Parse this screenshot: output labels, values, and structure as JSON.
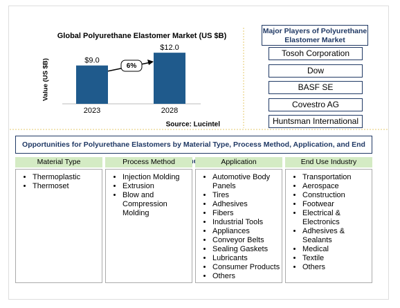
{
  "chart_data": {
    "type": "bar",
    "title": "Global Polyurethane Elastomer Market (US $B)",
    "y_label": "Value (US $B)",
    "categories": [
      "2023",
      "2028"
    ],
    "values": [
      9.0,
      12.0
    ],
    "value_labels": [
      "$9.0",
      "$12.0"
    ],
    "color": "#1f5a8c",
    "ylim": [
      0,
      13
    ],
    "annotation": "6%",
    "source": "Source: Lucintel"
  },
  "major_players": {
    "title": "Major Players of Polyurethane Elastomer Market",
    "companies": [
      "Tosoh Corporation",
      "Dow",
      "BASF SE",
      "Covestro AG",
      "Huntsman International"
    ]
  },
  "opportunities": {
    "title": "Opportunities for Polyurethane Elastomers by Material Type, Process Method, Application, and End Use Industry",
    "columns": [
      {
        "header": "Material Type",
        "items": [
          "Thermoplastic",
          "Thermoset"
        ]
      },
      {
        "header": "Process Method",
        "items": [
          "Injection Molding",
          "Extrusion",
          "Blow and Compression Molding"
        ]
      },
      {
        "header": "Application",
        "items": [
          "Automotive Body Panels",
          "Tires",
          "Adhesives",
          "Fibers",
          "Industrial Tools",
          "Appliances",
          "Conveyor Belts",
          "Sealing Gaskets",
          "Lubricants",
          "Consumer Products",
          "Others"
        ]
      },
      {
        "header": "End Use Industry",
        "items": [
          "Transportation",
          "Aerospace",
          "Construction",
          "Footwear",
          "Electrical & Electronics",
          "Adhesives & Sealants",
          "Medical",
          "Textile",
          "Others"
        ]
      }
    ]
  }
}
